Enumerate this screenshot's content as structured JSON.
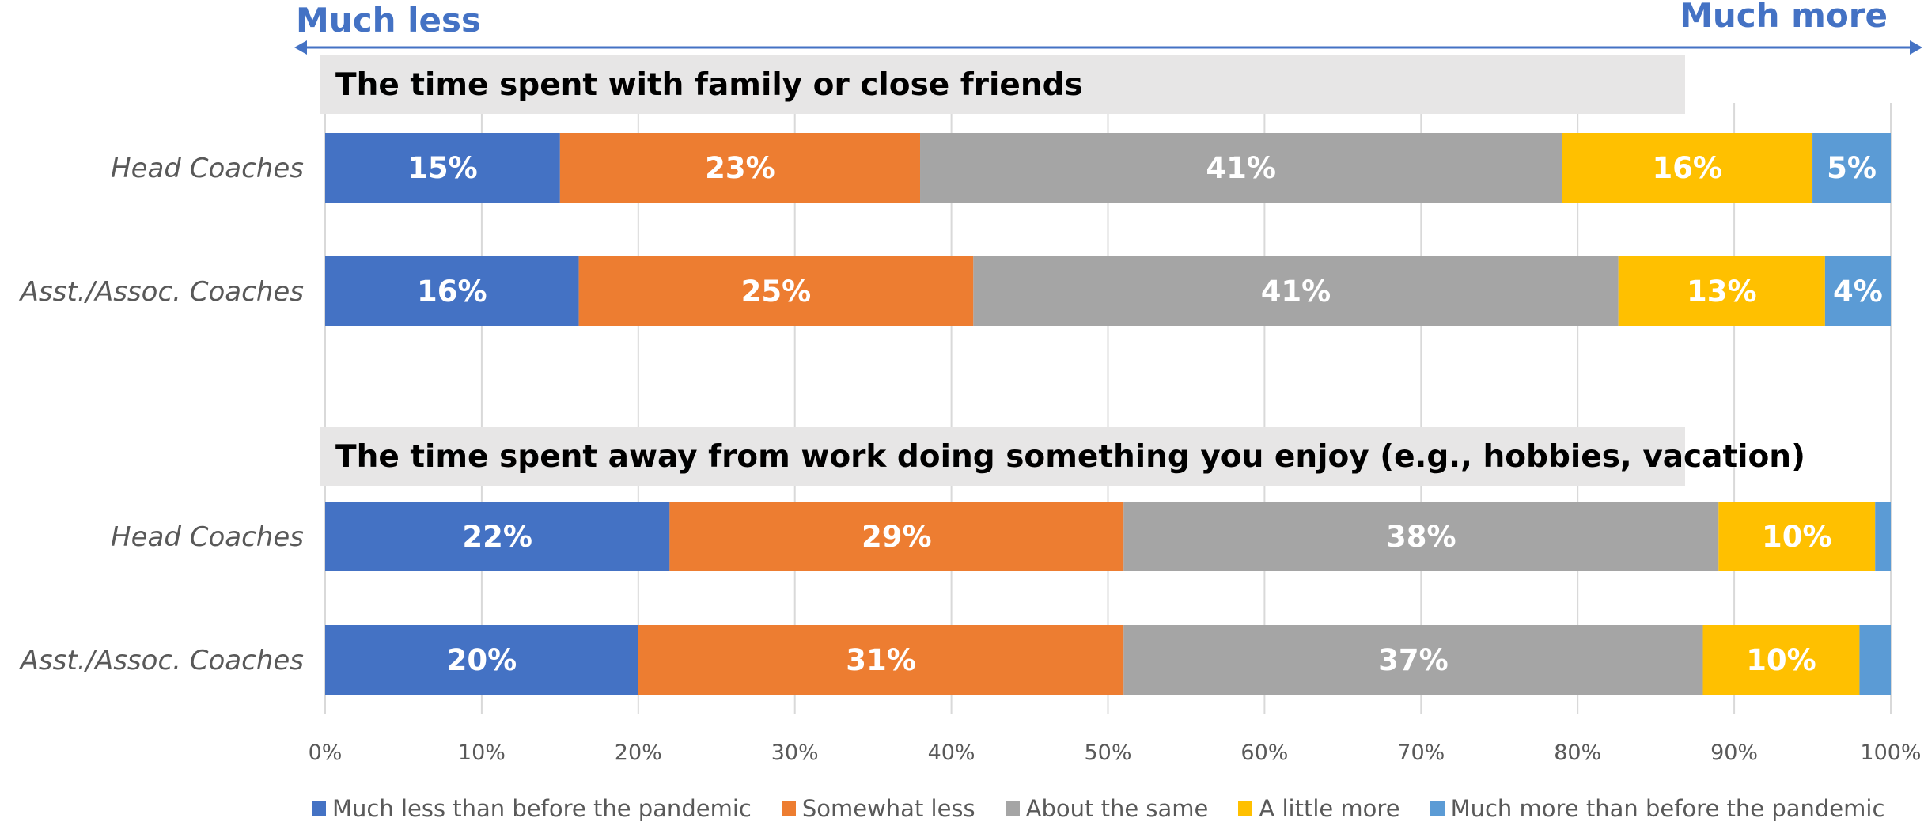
{
  "arrows": {
    "left_label": "Much less",
    "right_label": "Much more",
    "color": "#4472C4"
  },
  "chart_data": {
    "type": "bar",
    "orientation": "horizontal",
    "stacked": true,
    "xlim": [
      0,
      100
    ],
    "x_ticks": [
      "0%",
      "10%",
      "20%",
      "30%",
      "40%",
      "50%",
      "60%",
      "70%",
      "80%",
      "90%",
      "100%"
    ],
    "grid": true,
    "legend_position": "bottom",
    "series": [
      {
        "name": "Much less than before the pandemic",
        "color": "#4472C4"
      },
      {
        "name": "Somewhat less",
        "color": "#ED7D31"
      },
      {
        "name": "About the same",
        "color": "#A5A5A5"
      },
      {
        "name": "A little more",
        "color": "#FFC000"
      },
      {
        "name": "Much more than before the pandemic",
        "color": "#5B9BD5"
      }
    ],
    "groups": [
      {
        "title": "The time spent with family or close friends",
        "rows": [
          {
            "label": "Head Coaches",
            "values": [
              15,
              23,
              41,
              16,
              5
            ],
            "labels": [
              "15%",
              "23%",
              "41%",
              "16%",
              "5%"
            ]
          },
          {
            "label": "Asst./Assoc. Coaches",
            "values": [
              16.2,
              25.2,
              41.2,
              13.2,
              4.2
            ],
            "labels": [
              "16%",
              "25%",
              "41%",
              "13%",
              "4%"
            ]
          }
        ]
      },
      {
        "title": "The time spent away from work doing something you enjoy (e.g., hobbies, vacation)",
        "rows": [
          {
            "label": "Head Coaches",
            "values": [
              22,
              29,
              38,
              10,
              1
            ],
            "labels": [
              "22%",
              "29%",
              "38%",
              "10%",
              ""
            ]
          },
          {
            "label": "Asst./Assoc. Coaches",
            "values": [
              20,
              31,
              37,
              10,
              2
            ],
            "labels": [
              "20%",
              "31%",
              "37%",
              "10%",
              ""
            ]
          }
        ]
      }
    ]
  }
}
